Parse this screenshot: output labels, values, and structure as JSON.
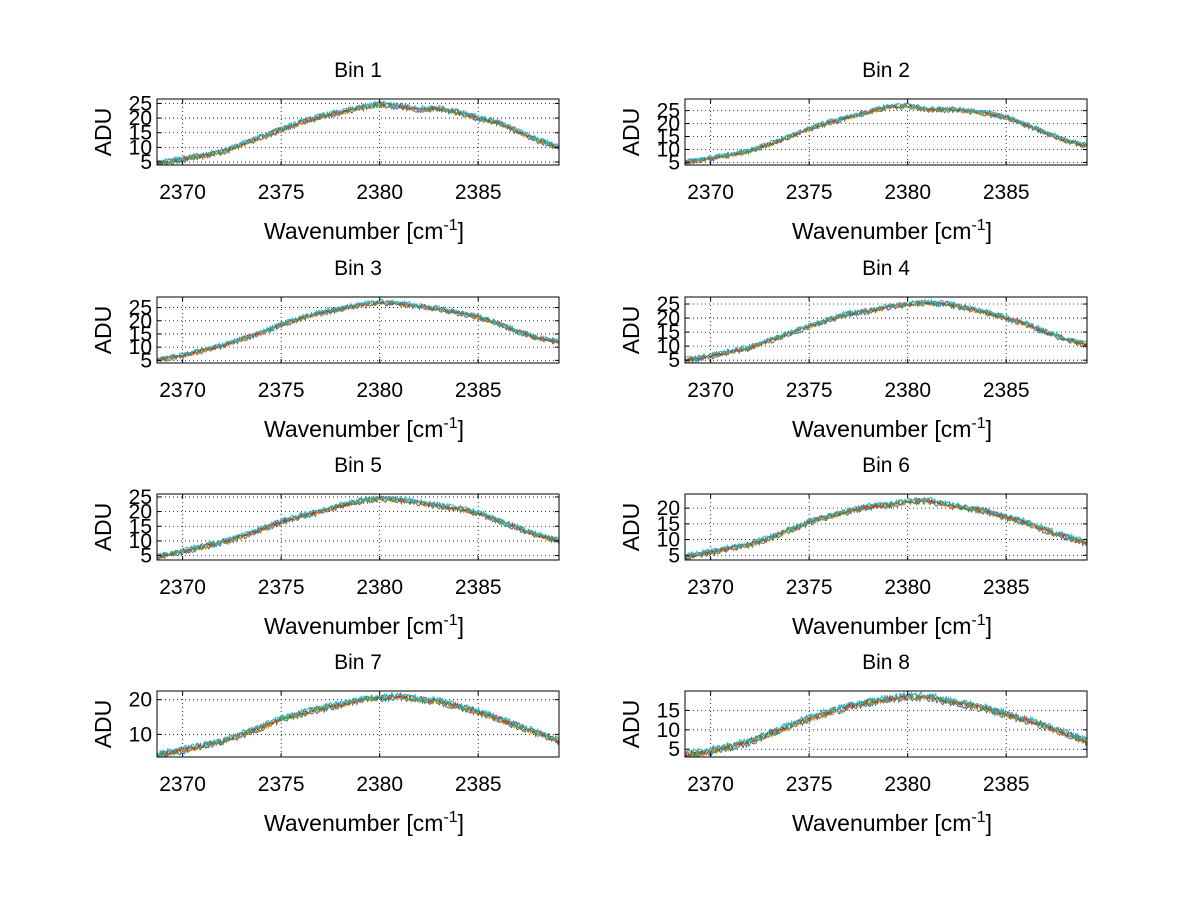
{
  "figure": {
    "xlabel": "Wavenumber [cm",
    "xlabel_sup": "-1",
    "xlabel_end": "]",
    "ylabel": "ADU"
  },
  "colors": [
    "#1f77b4",
    "#ff7f0e",
    "#2ca02c",
    "#d62728",
    "#17becf"
  ],
  "chart_data": [
    {
      "type": "line",
      "title": "Bin 1",
      "xlabel": "Wavenumber [cm-1]",
      "ylabel": "ADU",
      "xlim": [
        2368.7,
        2389.1
      ],
      "ylim": [
        4,
        26.5
      ],
      "xticks": [
        2370,
        2375,
        2380,
        2385
      ],
      "yticks": [
        5,
        10,
        15,
        20,
        25
      ],
      "grid": true,
      "legend": "none",
      "x": [
        2368.7,
        2370,
        2372,
        2373,
        2374,
        2375,
        2376,
        2377,
        2378,
        2379,
        2380,
        2381,
        2382,
        2383,
        2384,
        2385,
        2386,
        2387,
        2388,
        2389.1
      ],
      "series": [
        {
          "values": [
            4.5,
            6.0,
            8.5,
            11.0,
            13.5,
            16.0,
            18.5,
            20.5,
            22.0,
            23.5,
            24.8,
            24.0,
            23.0,
            23.2,
            22.0,
            20.0,
            18.5,
            15.5,
            12.5,
            10.0
          ]
        }
      ]
    },
    {
      "type": "line",
      "title": "Bin 2",
      "xlabel": "Wavenumber [cm-1]",
      "ylabel": "ADU",
      "xlim": [
        2368.7,
        2389.1
      ],
      "ylim": [
        4,
        29.5
      ],
      "xticks": [
        2370,
        2375,
        2380,
        2385
      ],
      "yticks": [
        5,
        10,
        15,
        20,
        25
      ],
      "grid": true,
      "legend": "none",
      "x": [
        2368.7,
        2370,
        2372,
        2373,
        2374,
        2375,
        2376,
        2377,
        2378,
        2379,
        2380,
        2381,
        2382,
        2383,
        2384,
        2385,
        2386,
        2387,
        2388,
        2389.1
      ],
      "series": [
        {
          "values": [
            5.0,
            6.5,
            9.5,
            12.0,
            15.0,
            18.0,
            20.5,
            22.5,
            24.5,
            26.5,
            27.0,
            25.5,
            25.5,
            25.0,
            24.0,
            22.5,
            19.5,
            16.5,
            13.5,
            11.5
          ]
        }
      ]
    },
    {
      "type": "line",
      "title": "Bin 3",
      "xlabel": "Wavenumber [cm-1]",
      "ylabel": "ADU",
      "xlim": [
        2368.7,
        2389.1
      ],
      "ylim": [
        4,
        29
      ],
      "xticks": [
        2370,
        2375,
        2380,
        2385
      ],
      "yticks": [
        5,
        10,
        15,
        20,
        25
      ],
      "grid": true,
      "legend": "none",
      "x": [
        2368.7,
        2370,
        2372,
        2373,
        2374,
        2375,
        2376,
        2377,
        2378,
        2379,
        2380,
        2381,
        2382,
        2383,
        2384,
        2385,
        2386,
        2387,
        2388,
        2389.1
      ],
      "series": [
        {
          "values": [
            5.0,
            7.0,
            10.5,
            13.0,
            15.5,
            18.5,
            21.0,
            23.0,
            24.5,
            26.0,
            27.0,
            26.5,
            25.5,
            24.5,
            23.0,
            21.5,
            19.0,
            16.0,
            13.5,
            12.0
          ]
        }
      ]
    },
    {
      "type": "line",
      "title": "Bin 4",
      "xlabel": "Wavenumber [cm-1]",
      "ylabel": "ADU",
      "xlim": [
        2368.7,
        2389.1
      ],
      "ylim": [
        4,
        27.5
      ],
      "xticks": [
        2370,
        2375,
        2380,
        2385
      ],
      "yticks": [
        5,
        10,
        15,
        20,
        25
      ],
      "grid": true,
      "legend": "none",
      "x": [
        2368.7,
        2370,
        2372,
        2373,
        2374,
        2375,
        2376,
        2377,
        2378,
        2379,
        2380,
        2381,
        2382,
        2383,
        2384,
        2385,
        2386,
        2387,
        2388,
        2389.1
      ],
      "series": [
        {
          "values": [
            5.0,
            6.5,
            9.5,
            12.0,
            14.5,
            17.0,
            19.5,
            21.5,
            22.5,
            24.0,
            25.0,
            25.5,
            25.0,
            23.5,
            22.0,
            20.0,
            18.0,
            15.0,
            12.5,
            10.5
          ]
        }
      ]
    },
    {
      "type": "line",
      "title": "Bin 5",
      "xlabel": "Wavenumber [cm-1]",
      "ylabel": "ADU",
      "xlim": [
        2368.7,
        2389.1
      ],
      "ylim": [
        3.5,
        26
      ],
      "xticks": [
        2370,
        2375,
        2380,
        2385
      ],
      "yticks": [
        5,
        10,
        15,
        20,
        25
      ],
      "grid": true,
      "legend": "none",
      "x": [
        2368.7,
        2370,
        2372,
        2373,
        2374,
        2375,
        2376,
        2377,
        2378,
        2379,
        2380,
        2381,
        2382,
        2383,
        2384,
        2385,
        2386,
        2387,
        2388,
        2389.1
      ],
      "series": [
        {
          "values": [
            4.5,
            6.5,
            9.5,
            11.5,
            14.0,
            16.5,
            18.5,
            20.0,
            22.0,
            23.5,
            24.5,
            24.0,
            23.0,
            22.0,
            21.0,
            19.5,
            17.0,
            14.5,
            12.0,
            10.0
          ]
        }
      ]
    },
    {
      "type": "line",
      "title": "Bin 6",
      "xlabel": "Wavenumber [cm-1]",
      "ylabel": "ADU",
      "xlim": [
        2368.7,
        2389.1
      ],
      "ylim": [
        3.5,
        24.5
      ],
      "xticks": [
        2370,
        2375,
        2380,
        2385
      ],
      "yticks": [
        5,
        10,
        15,
        20
      ],
      "grid": true,
      "legend": "none",
      "x": [
        2368.7,
        2370,
        2372,
        2373,
        2374,
        2375,
        2376,
        2377,
        2378,
        2379,
        2380,
        2381,
        2382,
        2383,
        2384,
        2385,
        2386,
        2387,
        2388,
        2389.1
      ],
      "series": [
        {
          "values": [
            4.5,
            6.0,
            8.5,
            10.5,
            13.0,
            15.5,
            17.5,
            19.0,
            20.5,
            21.0,
            22.0,
            22.5,
            21.0,
            20.0,
            19.0,
            17.0,
            15.5,
            13.0,
            11.0,
            9.0
          ]
        }
      ]
    },
    {
      "type": "line",
      "title": "Bin 7",
      "xlabel": "Wavenumber [cm-1]",
      "ylabel": "ADU",
      "xlim": [
        2368.7,
        2389.1
      ],
      "ylim": [
        3.5,
        22.5
      ],
      "xticks": [
        2370,
        2375,
        2380,
        2385
      ],
      "yticks": [
        10,
        20
      ],
      "grid": true,
      "legend": "none",
      "x": [
        2368.7,
        2370,
        2372,
        2373,
        2374,
        2375,
        2376,
        2377,
        2378,
        2379,
        2380,
        2381,
        2382,
        2383,
        2384,
        2385,
        2386,
        2387,
        2388,
        2389.1
      ],
      "series": [
        {
          "values": [
            4.0,
            5.5,
            8.0,
            10.0,
            12.0,
            14.5,
            16.0,
            17.5,
            18.5,
            20.0,
            20.5,
            21.0,
            20.0,
            19.5,
            18.0,
            16.5,
            14.5,
            12.5,
            10.5,
            8.0
          ]
        }
      ]
    },
    {
      "type": "line",
      "title": "Bin 8",
      "xlabel": "Wavenumber [cm-1]",
      "ylabel": "ADU",
      "xlim": [
        2368.7,
        2389.1
      ],
      "ylim": [
        3,
        20
      ],
      "xticks": [
        2370,
        2375,
        2380,
        2385
      ],
      "yticks": [
        5,
        10,
        15
      ],
      "grid": true,
      "legend": "none",
      "x": [
        2368.7,
        2370,
        2372,
        2373,
        2374,
        2375,
        2376,
        2377,
        2378,
        2379,
        2380,
        2381,
        2382,
        2383,
        2384,
        2385,
        2386,
        2387,
        2388,
        2389.1
      ],
      "series": [
        {
          "values": [
            3.5,
            4.5,
            7.0,
            9.0,
            11.0,
            13.0,
            14.5,
            16.0,
            17.0,
            18.0,
            18.5,
            18.5,
            17.5,
            16.5,
            15.5,
            14.0,
            12.5,
            11.0,
            9.0,
            7.0
          ]
        }
      ]
    }
  ]
}
